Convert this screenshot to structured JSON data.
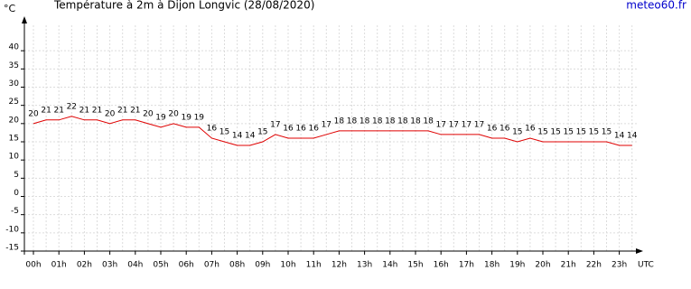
{
  "chart_data": {
    "type": "line",
    "title": "Température à 2m à Dijon Longvic (28/08/2020)",
    "y_label": "°C",
    "x_label": "UTC",
    "source": "meteo60.fr",
    "categories": [
      "00h",
      null,
      "01h",
      null,
      "02h",
      null,
      "03h",
      null,
      "04h",
      null,
      "05h",
      null,
      "06h",
      null,
      "07h",
      null,
      "08h",
      null,
      "09h",
      null,
      "10h",
      null,
      "11h",
      null,
      "12h",
      null,
      "13h",
      null,
      "14h",
      null,
      "15h",
      null,
      "16h",
      null,
      "17h",
      null,
      "18h",
      null,
      "19h",
      null,
      "20h",
      null,
      "21h",
      null,
      "22h",
      null,
      "23h",
      null
    ],
    "series": [
      {
        "name": "Température",
        "color": "#e00000",
        "values": [
          20,
          21,
          21,
          22,
          21,
          21,
          20,
          21,
          21,
          20,
          19,
          20,
          19,
          19,
          16,
          15,
          14,
          14,
          15,
          17,
          16,
          16,
          16,
          17,
          18,
          18,
          18,
          18,
          18,
          18,
          18,
          18,
          17,
          17,
          17,
          17,
          16,
          16,
          15,
          16,
          15,
          15,
          15,
          15,
          15,
          15,
          14,
          14
        ]
      }
    ],
    "ylim": [
      -15,
      45
    ],
    "yticks": [
      -15,
      -10,
      -5,
      0,
      5,
      10,
      15,
      20,
      25,
      30,
      35,
      40
    ],
    "grid": true
  }
}
